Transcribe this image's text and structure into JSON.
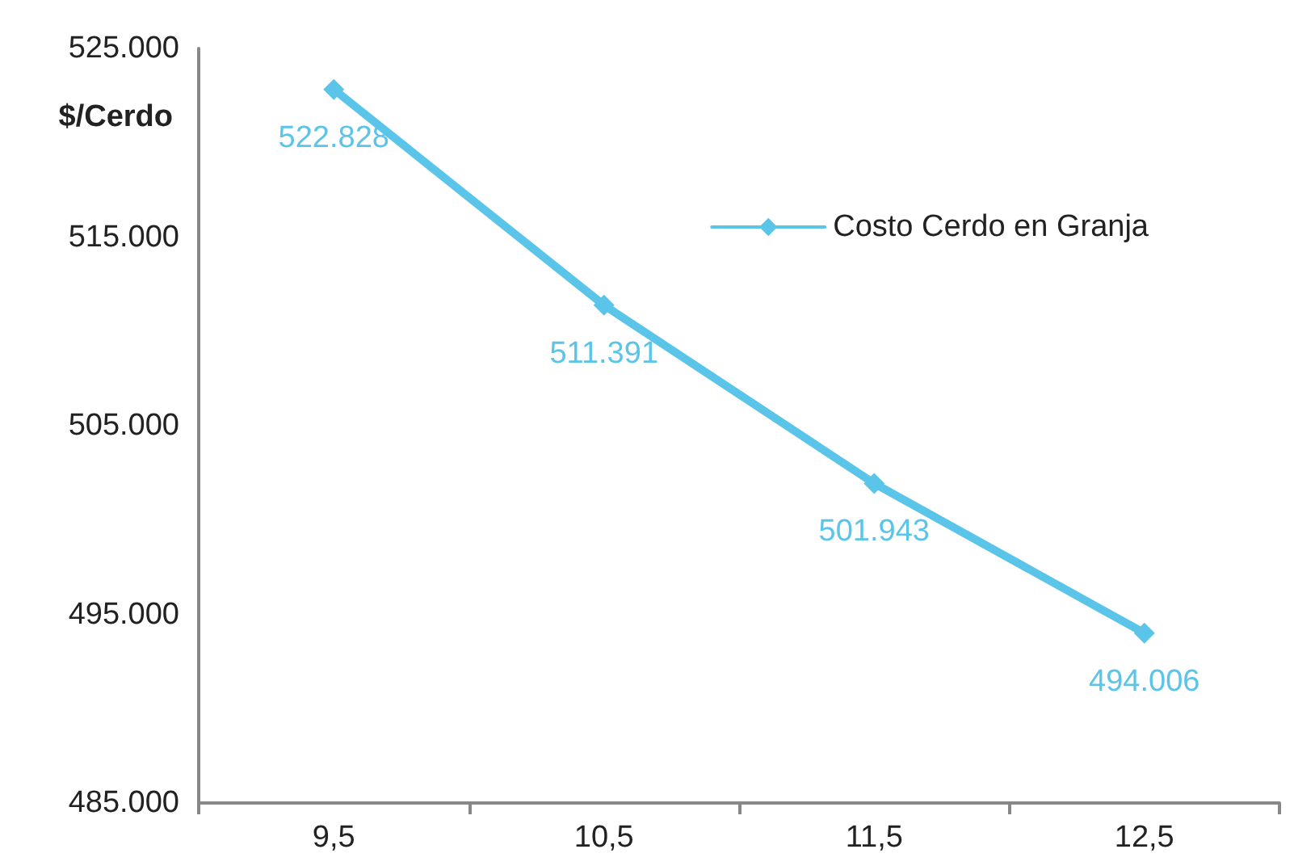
{
  "chart_data": {
    "type": "line",
    "ylabel": "$/Cerdo",
    "categories": [
      "9,5",
      "10,5",
      "11,5",
      "12,5"
    ],
    "series": [
      {
        "name": "Costo Cerdo en Granja",
        "color": "#5bc4e9",
        "values": [
          522828,
          511391,
          501943,
          494006
        ],
        "value_labels": [
          "522.828",
          "511.391",
          "501.943",
          "494.006"
        ]
      }
    ],
    "ylim": [
      485000,
      525000
    ],
    "yticks": [
      {
        "value": 485000,
        "label": "485.000"
      },
      {
        "value": 495000,
        "label": "495.000"
      },
      {
        "value": 505000,
        "label": "505.000"
      },
      {
        "value": 515000,
        "label": "515.000"
      },
      {
        "value": 525000,
        "label": "525.000"
      }
    ],
    "legend": "top right",
    "marker": "diamond",
    "line_style": "solid",
    "grid": false
  }
}
